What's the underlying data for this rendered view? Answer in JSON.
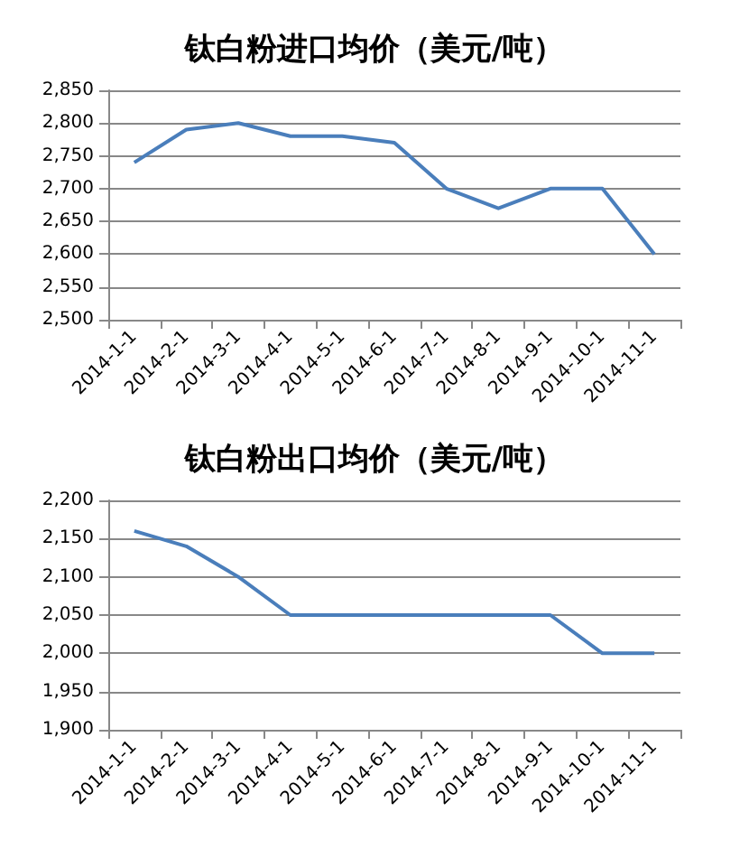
{
  "chart_data": [
    {
      "type": "line",
      "title": "钛白粉进口均价（美元/吨）",
      "categories": [
        "2014-1-1",
        "2014-2-1",
        "2014-3-1",
        "2014-4-1",
        "2014-5-1",
        "2014-6-1",
        "2014-7-1",
        "2014-8-1",
        "2014-9-1",
        "2014-10-1",
        "2014-11-1"
      ],
      "series": [
        {
          "color": "#4a7ebb",
          "values": [
            2740,
            2790,
            2800,
            2780,
            2780,
            2770,
            2700,
            2670,
            2700,
            2700,
            2600
          ]
        }
      ],
      "ylim": [
        2500,
        2850
      ],
      "yticks": [
        {
          "value": 2500,
          "label": "2,500"
        },
        {
          "value": 2550,
          "label": "2,550"
        },
        {
          "value": 2600,
          "label": "2,600"
        },
        {
          "value": 2650,
          "label": "2,650"
        },
        {
          "value": 2700,
          "label": "2,700"
        },
        {
          "value": 2750,
          "label": "2,750"
        },
        {
          "value": 2800,
          "label": "2,800"
        },
        {
          "value": 2850,
          "label": "2,850"
        }
      ],
      "grid": "y",
      "marker": "none",
      "line_style": "solid"
    },
    {
      "type": "line",
      "title": "钛白粉出口均价（美元/吨）",
      "categories": [
        "2014-1-1",
        "2014-2-1",
        "2014-3-1",
        "2014-4-1",
        "2014-5-1",
        "2014-6-1",
        "2014-7-1",
        "2014-8-1",
        "2014-9-1",
        "2014-10-1",
        "2014-11-1"
      ],
      "series": [
        {
          "color": "#4a7ebb",
          "values": [
            2160,
            2140,
            2100,
            2050,
            2050,
            2050,
            2050,
            2050,
            2050,
            2000,
            2000
          ]
        }
      ],
      "ylim": [
        1900,
        2200
      ],
      "yticks": [
        {
          "value": 1900,
          "label": "1,900"
        },
        {
          "value": 1950,
          "label": "1,950"
        },
        {
          "value": 2000,
          "label": "2,000"
        },
        {
          "value": 2050,
          "label": "2,050"
        },
        {
          "value": 2100,
          "label": "2,100"
        },
        {
          "value": 2150,
          "label": "2,150"
        },
        {
          "value": 2200,
          "label": "2,200"
        }
      ],
      "grid": "y",
      "marker": "none",
      "line_style": "solid"
    }
  ]
}
